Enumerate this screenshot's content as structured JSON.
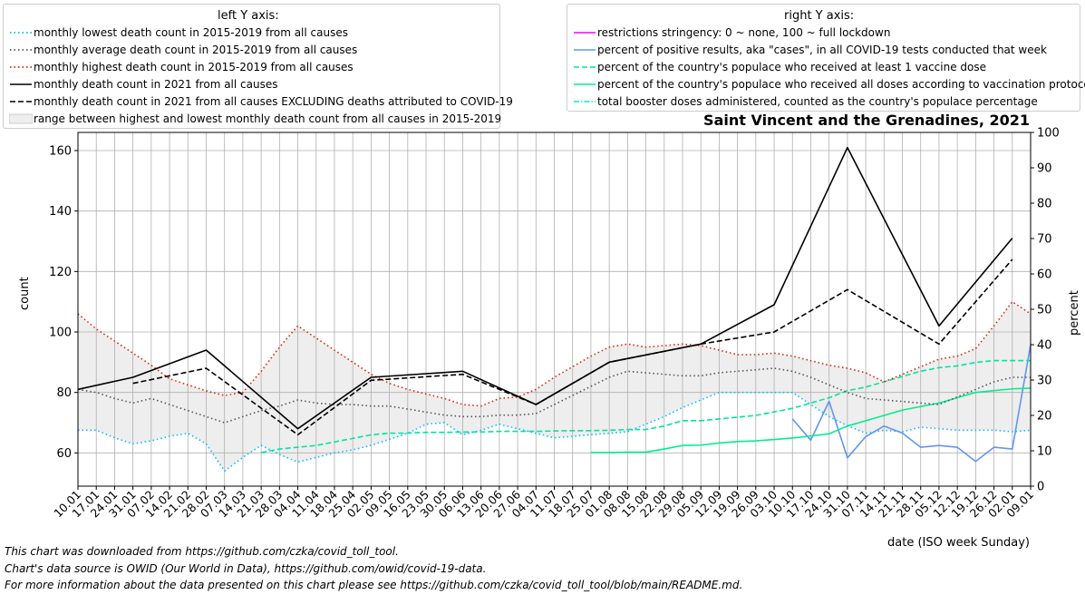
{
  "legend_left": {
    "title": "left Y axis:",
    "items": [
      {
        "label": "monthly lowest death count in 2015-2019 from all causes",
        "color": "#00bfff",
        "style": "dotted"
      },
      {
        "label": "monthly average death count in 2015-2019 from all causes",
        "color": "#555555",
        "style": "dotted"
      },
      {
        "label": "monthly highest death count in 2015-2019 from all causes",
        "color": "#dd2200",
        "style": "dotted"
      },
      {
        "label": "monthly death count in 2021 from all causes",
        "color": "#000000",
        "style": "solid"
      },
      {
        "label": "monthly death count in 2021 from all causes EXCLUDING deaths attributed to COVID-19",
        "color": "#000000",
        "style": "dashed"
      },
      {
        "label": "range between highest and lowest monthly death count from all causes in 2015-2019",
        "color": "#eeeeee",
        "style": "fill"
      }
    ]
  },
  "legend_right": {
    "title": "right Y axis:",
    "items": [
      {
        "label": "restrictions stringency: 0 ~ none, 100 ~ full lockdown",
        "color": "#ff00ff",
        "style": "solid"
      },
      {
        "label": "percent of positive results, aka \"cases\", in all COVID-19 tests conducted that week",
        "color": "#6495ed",
        "style": "solid"
      },
      {
        "label": "percent of the country's populace who received at least 1 vaccine dose",
        "color": "#00e5a0",
        "style": "dashed"
      },
      {
        "label": "percent of the country's populace who received all doses according to vaccination protocol",
        "color": "#00ee90",
        "style": "solid"
      },
      {
        "label": "total booster doses administered, counted as the country's populace percentage",
        "color": "#00f0c0",
        "style": "dashdot"
      }
    ]
  },
  "footer": [
    "This chart was downloaded from https://github.com/czka/covid_toll_tool.",
    "Chart's data source is OWID (Our World in Data), https://github.com/owid/covid-19-data.",
    "For more information about the data presented on this chart please see https://github.com/czka/covid_toll_tool/blob/main/README.md."
  ],
  "chart_data": {
    "type": "line",
    "title": "Saint Vincent and the Grenadines, 2021",
    "xlabel": "date (ISO week Sunday)",
    "ylabel_left": "count",
    "ylabel_right": "percent",
    "ylim_left": [
      49,
      166
    ],
    "ylim_right": [
      0,
      100
    ],
    "yticks_left": [
      60,
      80,
      100,
      120,
      140,
      160
    ],
    "yticks_right": [
      0,
      10,
      20,
      30,
      40,
      50,
      60,
      70,
      80,
      90,
      100
    ],
    "grid": true,
    "categories": [
      "10.01",
      "17.01",
      "24.01",
      "31.01",
      "07.02",
      "14.02",
      "21.02",
      "28.02",
      "07.03",
      "14.03",
      "21.03",
      "28.03",
      "04.04",
      "11.04",
      "18.04",
      "25.04",
      "02.05",
      "09.05",
      "16.05",
      "23.05",
      "30.05",
      "06.06",
      "13.06",
      "20.06",
      "27.06",
      "04.07",
      "11.07",
      "18.07",
      "25.07",
      "01.08",
      "08.08",
      "15.08",
      "22.08",
      "29.08",
      "05.09",
      "12.09",
      "19.09",
      "26.09",
      "03.10",
      "10.10",
      "17.10",
      "24.10",
      "31.10",
      "07.11",
      "14.11",
      "21.11",
      "28.11",
      "05.12",
      "12.12",
      "19.12",
      "26.12",
      "02.01",
      "09.01"
    ],
    "left_series": [
      {
        "name": "monthly lowest death count in 2015-2019 from all causes",
        "axis": "left",
        "color": "#00bfff",
        "style": "dotted",
        "values": [
          67.5,
          67.5,
          65,
          63,
          64,
          65.5,
          66.5,
          63,
          54,
          58.5,
          62.5,
          59.5,
          57,
          58.5,
          60,
          61,
          62.5,
          64.5,
          66.5,
          69.5,
          70,
          66,
          67.5,
          69.5,
          68,
          66.5,
          65,
          65.5,
          66,
          66.5,
          67,
          69.5,
          72,
          75,
          77.5,
          80,
          80,
          80,
          80,
          80,
          76,
          72,
          69,
          66.5,
          67.5,
          67,
          68.5,
          68,
          67.5,
          67.5,
          67.5,
          67,
          67.5
        ]
      },
      {
        "name": "monthly average death count in 2015-2019 from all causes",
        "axis": "left",
        "color": "#555555",
        "style": "dotted",
        "values": [
          81,
          80,
          78,
          76.5,
          78,
          76,
          74,
          72,
          70,
          72,
          74,
          75.5,
          77.5,
          76.5,
          76,
          76,
          75.5,
          75.5,
          74.5,
          73.5,
          72.5,
          72,
          72,
          72.5,
          72.5,
          73,
          76,
          79,
          82,
          85,
          87,
          86.5,
          86,
          85.5,
          85.5,
          86.5,
          87,
          87.5,
          88,
          87,
          85,
          82.5,
          80,
          78,
          77.5,
          77,
          76.5,
          76,
          78.5,
          81,
          83.5,
          85,
          85
        ]
      },
      {
        "name": "monthly highest death count in 2015-2019 from all causes",
        "axis": "left",
        "color": "#dd2200",
        "style": "dotted",
        "values": [
          106,
          101,
          97,
          93,
          89,
          84.5,
          82.5,
          80.5,
          79,
          80,
          87,
          95,
          102,
          98,
          94,
          90,
          86,
          83,
          81,
          79.5,
          78,
          76,
          75.5,
          78,
          78.5,
          81,
          85,
          88.5,
          92,
          95,
          96,
          95,
          95.5,
          96,
          95.5,
          94,
          92.5,
          92.5,
          93,
          92,
          90.5,
          89,
          88,
          86.5,
          83.5,
          86,
          88.5,
          91,
          92,
          94.5,
          102,
          110,
          106
        ]
      },
      {
        "name": "monthly death count in 2021 from all causes",
        "axis": "left",
        "color": "#000000",
        "style": "solid",
        "values": [
          81,
          null,
          null,
          85,
          null,
          null,
          null,
          94,
          null,
          null,
          null,
          null,
          68,
          null,
          null,
          null,
          85,
          null,
          null,
          null,
          null,
          87,
          null,
          null,
          null,
          76,
          null,
          null,
          null,
          90,
          null,
          null,
          null,
          null,
          96,
          null,
          null,
          null,
          109,
          null,
          null,
          null,
          161,
          null,
          null,
          null,
          null,
          102,
          null,
          null,
          null,
          131,
          null
        ]
      },
      {
        "name": "monthly death count in 2021 from all causes EXCLUDING deaths attributed to COVID-19",
        "axis": "left",
        "color": "#000000",
        "style": "dashed",
        "values": [
          null,
          null,
          null,
          83,
          null,
          null,
          null,
          88,
          null,
          null,
          null,
          null,
          66,
          null,
          null,
          null,
          84,
          null,
          null,
          null,
          null,
          86,
          null,
          null,
          null,
          76,
          null,
          null,
          null,
          90,
          null,
          null,
          null,
          null,
          96,
          null,
          null,
          null,
          100,
          null,
          null,
          null,
          114,
          null,
          null,
          null,
          null,
          96,
          null,
          null,
          null,
          124,
          null
        ]
      }
    ],
    "right_series": [
      {
        "name": "percent of positive results, aka \"cases\", in all COVID-19 tests conducted that week",
        "axis": "right",
        "color": "#6495ed",
        "style": "solid",
        "values": [
          null,
          null,
          null,
          null,
          null,
          null,
          null,
          null,
          null,
          null,
          null,
          null,
          null,
          null,
          null,
          null,
          null,
          null,
          null,
          null,
          null,
          null,
          null,
          null,
          null,
          null,
          null,
          null,
          null,
          null,
          null,
          null,
          null,
          null,
          null,
          null,
          null,
          null,
          null,
          19,
          13,
          24,
          8,
          14,
          17,
          15,
          11,
          11.5,
          11,
          7,
          11,
          10.5,
          40
        ]
      },
      {
        "name": "percent of the country's populace who received at least 1 vaccine dose",
        "axis": "right",
        "color": "#00e5a0",
        "style": "dashed",
        "values": [
          null,
          null,
          null,
          null,
          null,
          null,
          null,
          null,
          null,
          null,
          9.5,
          10.5,
          11,
          11.5,
          12.5,
          13.5,
          14.5,
          15,
          15,
          15.2,
          15.2,
          15.3,
          15.3,
          15.5,
          15.5,
          15.5,
          15.6,
          15.7,
          15.7,
          15.8,
          16,
          16,
          17,
          18.5,
          18.5,
          19,
          19.5,
          20,
          21,
          22,
          23.5,
          25,
          27,
          28,
          29.5,
          31,
          32.5,
          33.5,
          34,
          35,
          35.5,
          35.5,
          35.5
        ]
      },
      {
        "name": "percent of the country's populace who received all doses according to vaccination protocol",
        "axis": "right",
        "color": "#00ee90",
        "style": "solid",
        "values": [
          null,
          null,
          null,
          null,
          null,
          null,
          null,
          null,
          null,
          null,
          null,
          null,
          null,
          null,
          null,
          null,
          null,
          null,
          null,
          null,
          null,
          null,
          null,
          null,
          null,
          null,
          null,
          null,
          9.5,
          9.5,
          9.6,
          9.6,
          10.5,
          11.5,
          11.6,
          12.2,
          12.6,
          12.8,
          13.2,
          13.6,
          14.2,
          14.8,
          17,
          18.5,
          20,
          21.5,
          22.5,
          23.5,
          25,
          26.5,
          27,
          27.5,
          27.7
        ]
      }
    ],
    "tick_color": "#000000",
    "grid_color": "#b0b0b0",
    "range_fill": "#eeeeee"
  }
}
